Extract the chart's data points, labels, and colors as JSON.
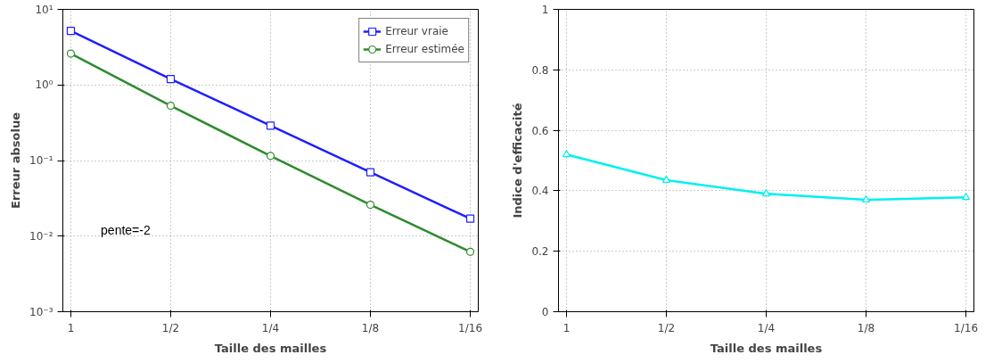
{
  "chart_data": [
    {
      "type": "line",
      "xlabel": "Taille des mailles",
      "ylabel": "Erreur absolue",
      "categories": [
        "1",
        "1/2",
        "1/4",
        "1/8",
        "1/16"
      ],
      "series": [
        {
          "name": "Erreur vraie",
          "color": "#1f1fff",
          "values": [
            5.2,
            1.2,
            0.29,
            0.07,
            0.017
          ],
          "marker": "square"
        },
        {
          "name": "Erreur estimée",
          "color": "#2e8b2e",
          "values": [
            2.6,
            0.53,
            0.115,
            0.026,
            0.0062
          ],
          "marker": "circle"
        }
      ],
      "log": "y",
      "ylim": [
        0.001,
        10
      ],
      "yticks": [
        {
          "value": 0.001,
          "label": "10⁻³"
        },
        {
          "value": 0.01,
          "label": "10⁻²"
        },
        {
          "value": 0.1,
          "label": "10⁻¹"
        },
        {
          "value": 1,
          "label": "10⁰"
        },
        {
          "value": 10,
          "label": "10¹"
        }
      ],
      "grid": true,
      "legend": "top right",
      "line_style": "solid",
      "annotations": [
        "pente=-2"
      ]
    },
    {
      "type": "line",
      "xlabel": "Taille des mailles",
      "ylabel": "Indice d'efficacité",
      "categories": [
        "1",
        "1/2",
        "1/4",
        "1/8",
        "1/16"
      ],
      "series": [
        {
          "color": "#00f0f0",
          "values": [
            0.52,
            0.435,
            0.39,
            0.37,
            0.378
          ],
          "marker": "triangle"
        }
      ],
      "ylim": [
        0,
        1
      ],
      "yticks": [
        0,
        0.2,
        0.4,
        0.6,
        0.8,
        1
      ],
      "grid": true,
      "line_style": "solid"
    }
  ]
}
